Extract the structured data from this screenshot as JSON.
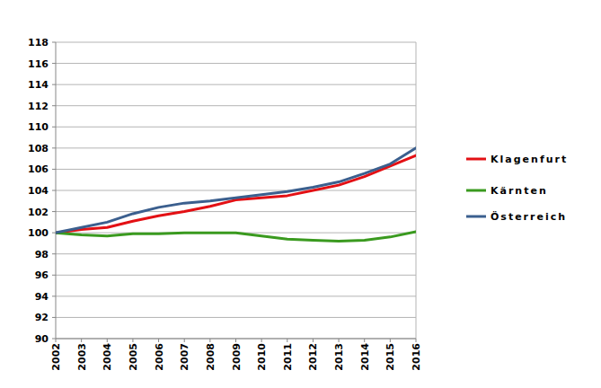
{
  "chart_data": {
    "type": "line",
    "categories": [
      "2002",
      "2003",
      "2004",
      "2005",
      "2006",
      "2007",
      "2008",
      "2009",
      "2010",
      "2011",
      "2012",
      "2013",
      "2014",
      "2015",
      "2016"
    ],
    "series": [
      {
        "name": "Klagenfurt",
        "color": "#e31014",
        "values": [
          100,
          100.3,
          100.5,
          101.1,
          101.6,
          102.0,
          102.5,
          103.1,
          103.3,
          103.5,
          104.0,
          104.5,
          105.3,
          106.3,
          107.3
        ]
      },
      {
        "name": "Kärnten",
        "color": "#3a9a1f",
        "values": [
          100,
          99.8,
          99.7,
          99.9,
          99.9,
          100.0,
          100.0,
          100.0,
          99.7,
          99.4,
          99.3,
          99.2,
          99.3,
          99.6,
          100.1
        ]
      },
      {
        "name": "Österreich",
        "color": "#3b5f8e",
        "values": [
          100,
          100.5,
          101.0,
          101.8,
          102.4,
          102.8,
          103.0,
          103.3,
          103.6,
          103.9,
          104.3,
          104.8,
          105.6,
          106.5,
          108.0
        ]
      }
    ],
    "ylim": [
      90,
      118
    ],
    "yticks": [
      90,
      92,
      94,
      96,
      98,
      100,
      102,
      104,
      106,
      108,
      110,
      112,
      114,
      116,
      118
    ],
    "grid": true,
    "legend": "right"
  }
}
